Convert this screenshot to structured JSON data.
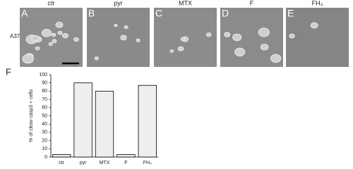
{
  "figure": {
    "row_label": "A375",
    "panels": [
      {
        "letter": "A",
        "caption": "ctr"
      },
      {
        "letter": "B",
        "caption": "pyr"
      },
      {
        "letter": "C",
        "caption": "MTX"
      },
      {
        "letter": "D",
        "caption": "F"
      },
      {
        "letter": "E",
        "caption": "FH₄"
      }
    ],
    "chart_letter": "F"
  },
  "chart_data": {
    "type": "bar",
    "ylabel": "% of cleav casp3 + cells",
    "categories": [
      "ctr",
      "pyr",
      "MTX",
      "F",
      "FH₄"
    ],
    "values": [
      3,
      90,
      80,
      3,
      87
    ],
    "ylim": [
      0,
      100
    ],
    "yticks": [
      0,
      10,
      20,
      30,
      40,
      50,
      60,
      70,
      80,
      90,
      100
    ],
    "color": "#eeeeee"
  }
}
